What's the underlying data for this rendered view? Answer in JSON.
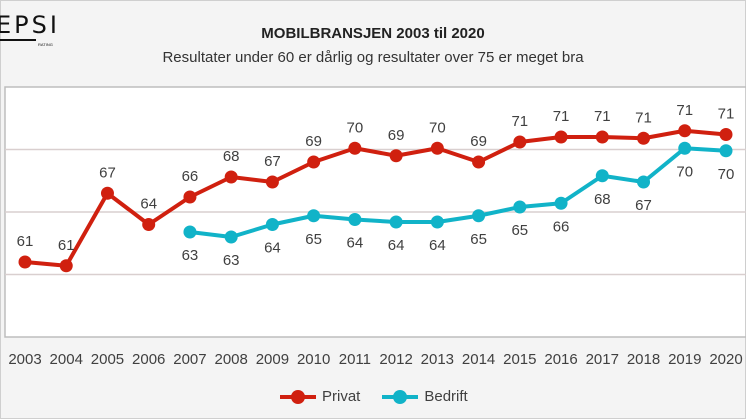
{
  "logo": {
    "text": "EPSI",
    "subtext": "RATING"
  },
  "chart_data": {
    "type": "line",
    "title": "MOBILBRANSJEN 2003 til 2020",
    "subtitle": "Resultater under 60 er dårlig og resultater over 75 er meget bra",
    "categories": [
      "2003",
      "2004",
      "2005",
      "2006",
      "2007",
      "2008",
      "2009",
      "2010",
      "2011",
      "2012",
      "2013",
      "2014",
      "2015",
      "2016",
      "2017",
      "2018",
      "2019",
      "2020"
    ],
    "ylim": [
      55,
      75
    ],
    "gridlines": [
      60,
      65,
      70
    ],
    "y_tick_labels_visible": false,
    "legend_position": "bottom",
    "series": [
      {
        "name": "Privat",
        "color": "#d0200f",
        "values": [
          61.0,
          60.7,
          66.5,
          64.0,
          66.2,
          67.8,
          67.4,
          69.0,
          70.1,
          69.5,
          70.1,
          69.0,
          70.6,
          71.0,
          71.0,
          70.9,
          71.5,
          71.2
        ],
        "labels": [
          "61",
          "61",
          "67",
          "64",
          "66",
          "68",
          "67",
          "69",
          "70",
          "69",
          "70",
          "69",
          "71",
          "71",
          "71",
          "71",
          "71",
          "71"
        ]
      },
      {
        "name": "Bedrift",
        "color": "#11b3c8",
        "values": [
          null,
          null,
          null,
          null,
          63.4,
          63.0,
          64.0,
          64.7,
          64.4,
          64.2,
          64.2,
          64.7,
          65.4,
          65.7,
          67.9,
          67.4,
          70.1,
          69.9
        ],
        "labels": [
          null,
          null,
          null,
          null,
          "63",
          "63",
          "64",
          "65",
          "64",
          "64",
          "64",
          "65",
          "65",
          "66",
          "68",
          "67",
          "70",
          "70"
        ]
      }
    ]
  }
}
